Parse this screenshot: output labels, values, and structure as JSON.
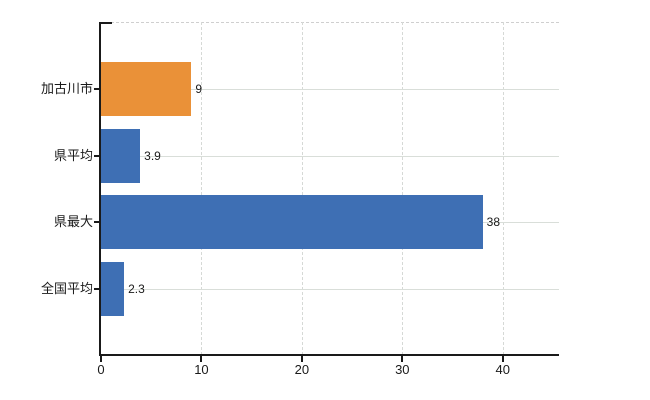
{
  "chart_data": {
    "type": "bar",
    "orientation": "horizontal",
    "title": "",
    "categories": [
      "加古川市",
      "県平均",
      "県最大",
      "全国平均"
    ],
    "values": [
      9,
      3.9,
      38,
      2.3
    ],
    "value_labels": [
      "9",
      "3.9",
      "38",
      "2.3"
    ],
    "bar_colors": [
      "#EA9138",
      "#3E6FB4",
      "#3E6FB4",
      "#3E6FB4"
    ],
    "x_ticks": [
      0,
      10,
      20,
      30,
      40
    ],
    "x_tick_labels": [
      "0",
      "10",
      "20",
      "30",
      "40"
    ],
    "xlim": [
      0,
      45.6
    ],
    "grid": {
      "vertical": "dashed at each x tick",
      "horizontal": "solid at each category center"
    },
    "legend": null,
    "colors": {
      "highlight_bar": "#EA9138",
      "default_bar": "#3E6FB4",
      "axis": "#1a1a1a",
      "gridline": "#d9ded9",
      "background": "#ffffff"
    }
  }
}
